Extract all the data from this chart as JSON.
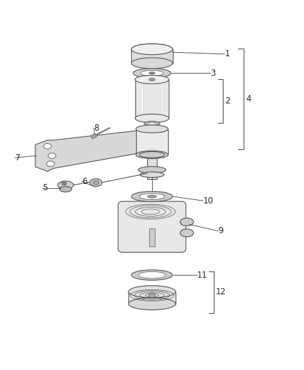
{
  "background_color": "#ffffff",
  "line_color": "#555555",
  "label_color": "#222222",
  "label_fontsize": 8.5,
  "fig_width": 4.38,
  "fig_height": 5.33,
  "dpi": 100
}
